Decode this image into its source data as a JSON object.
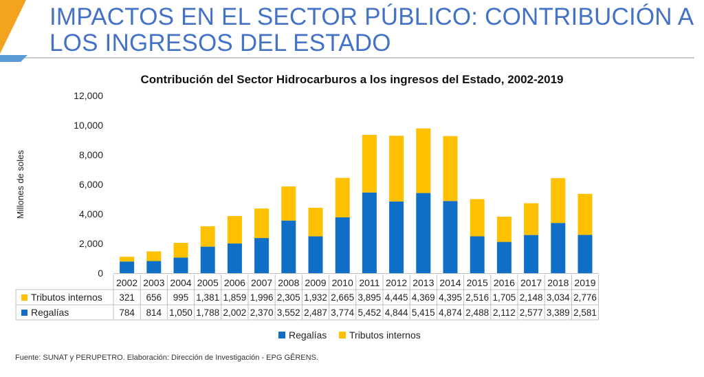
{
  "page": {
    "title": "IMPACTOS EN EL SECTOR PÚBLICO: CONTRIBUCIÓN A LOS INGRESOS DEL ESTADO",
    "source": "Fuente: SUNAT y PERUPETRO. Elaboración: Dirección de Investigación - EPG GÊRENS.",
    "colors": {
      "title": "#4472c4",
      "accent": "#f4a31e",
      "rule": "#5b9bd5"
    }
  },
  "chart_data": {
    "type": "bar",
    "stacked": true,
    "title": "Contribución del Sector Hidrocarburos a los ingresos del Estado, 2002-2019",
    "xlabel": "",
    "ylabel": "Millones de soles",
    "ylim": [
      0,
      12000
    ],
    "yticks": [
      0,
      2000,
      4000,
      6000,
      8000,
      10000,
      12000
    ],
    "ytick_labels": [
      "0",
      "2,000",
      "4,000",
      "6,000",
      "8,000",
      "10,000",
      "12,000"
    ],
    "grid": false,
    "legend_position": "bottom",
    "categories": [
      "2002",
      "2003",
      "2004",
      "2005",
      "2006",
      "2007",
      "2008",
      "2009",
      "2010",
      "2011",
      "2012",
      "2013",
      "2014",
      "2015",
      "2016",
      "2017",
      "2018",
      "2019"
    ],
    "series": [
      {
        "name": "Regalías",
        "color": "#0f6fc6",
        "values": [
          784,
          814,
          1050,
          1788,
          2002,
          2370,
          3552,
          2487,
          3774,
          5452,
          4844,
          5415,
          4874,
          2488,
          2112,
          2577,
          3389,
          2581
        ],
        "labels": [
          "784",
          "814",
          "1,050",
          "1,788",
          "2,002",
          "2,370",
          "3,552",
          "2,487",
          "3,774",
          "5,452",
          "4,844",
          "5,415",
          "4,874",
          "2,488",
          "2,112",
          "2,577",
          "3,389",
          "2,581"
        ]
      },
      {
        "name": "Tributos internos",
        "color": "#ffc000",
        "values": [
          321,
          656,
          995,
          1381,
          1859,
          1996,
          2305,
          1932,
          2665,
          3895,
          4445,
          4369,
          4395,
          2516,
          1705,
          2148,
          3034,
          2776
        ],
        "labels": [
          "321",
          "656",
          "995",
          "1,381",
          "1,859",
          "1,996",
          "2,305",
          "1,932",
          "2,665",
          "3,895",
          "4,445",
          "4,369",
          "4,395",
          "2,516",
          "1,705",
          "2,148",
          "3,034",
          "2,776"
        ]
      }
    ],
    "table_row_order": [
      "Tributos internos",
      "Regalías"
    ]
  }
}
